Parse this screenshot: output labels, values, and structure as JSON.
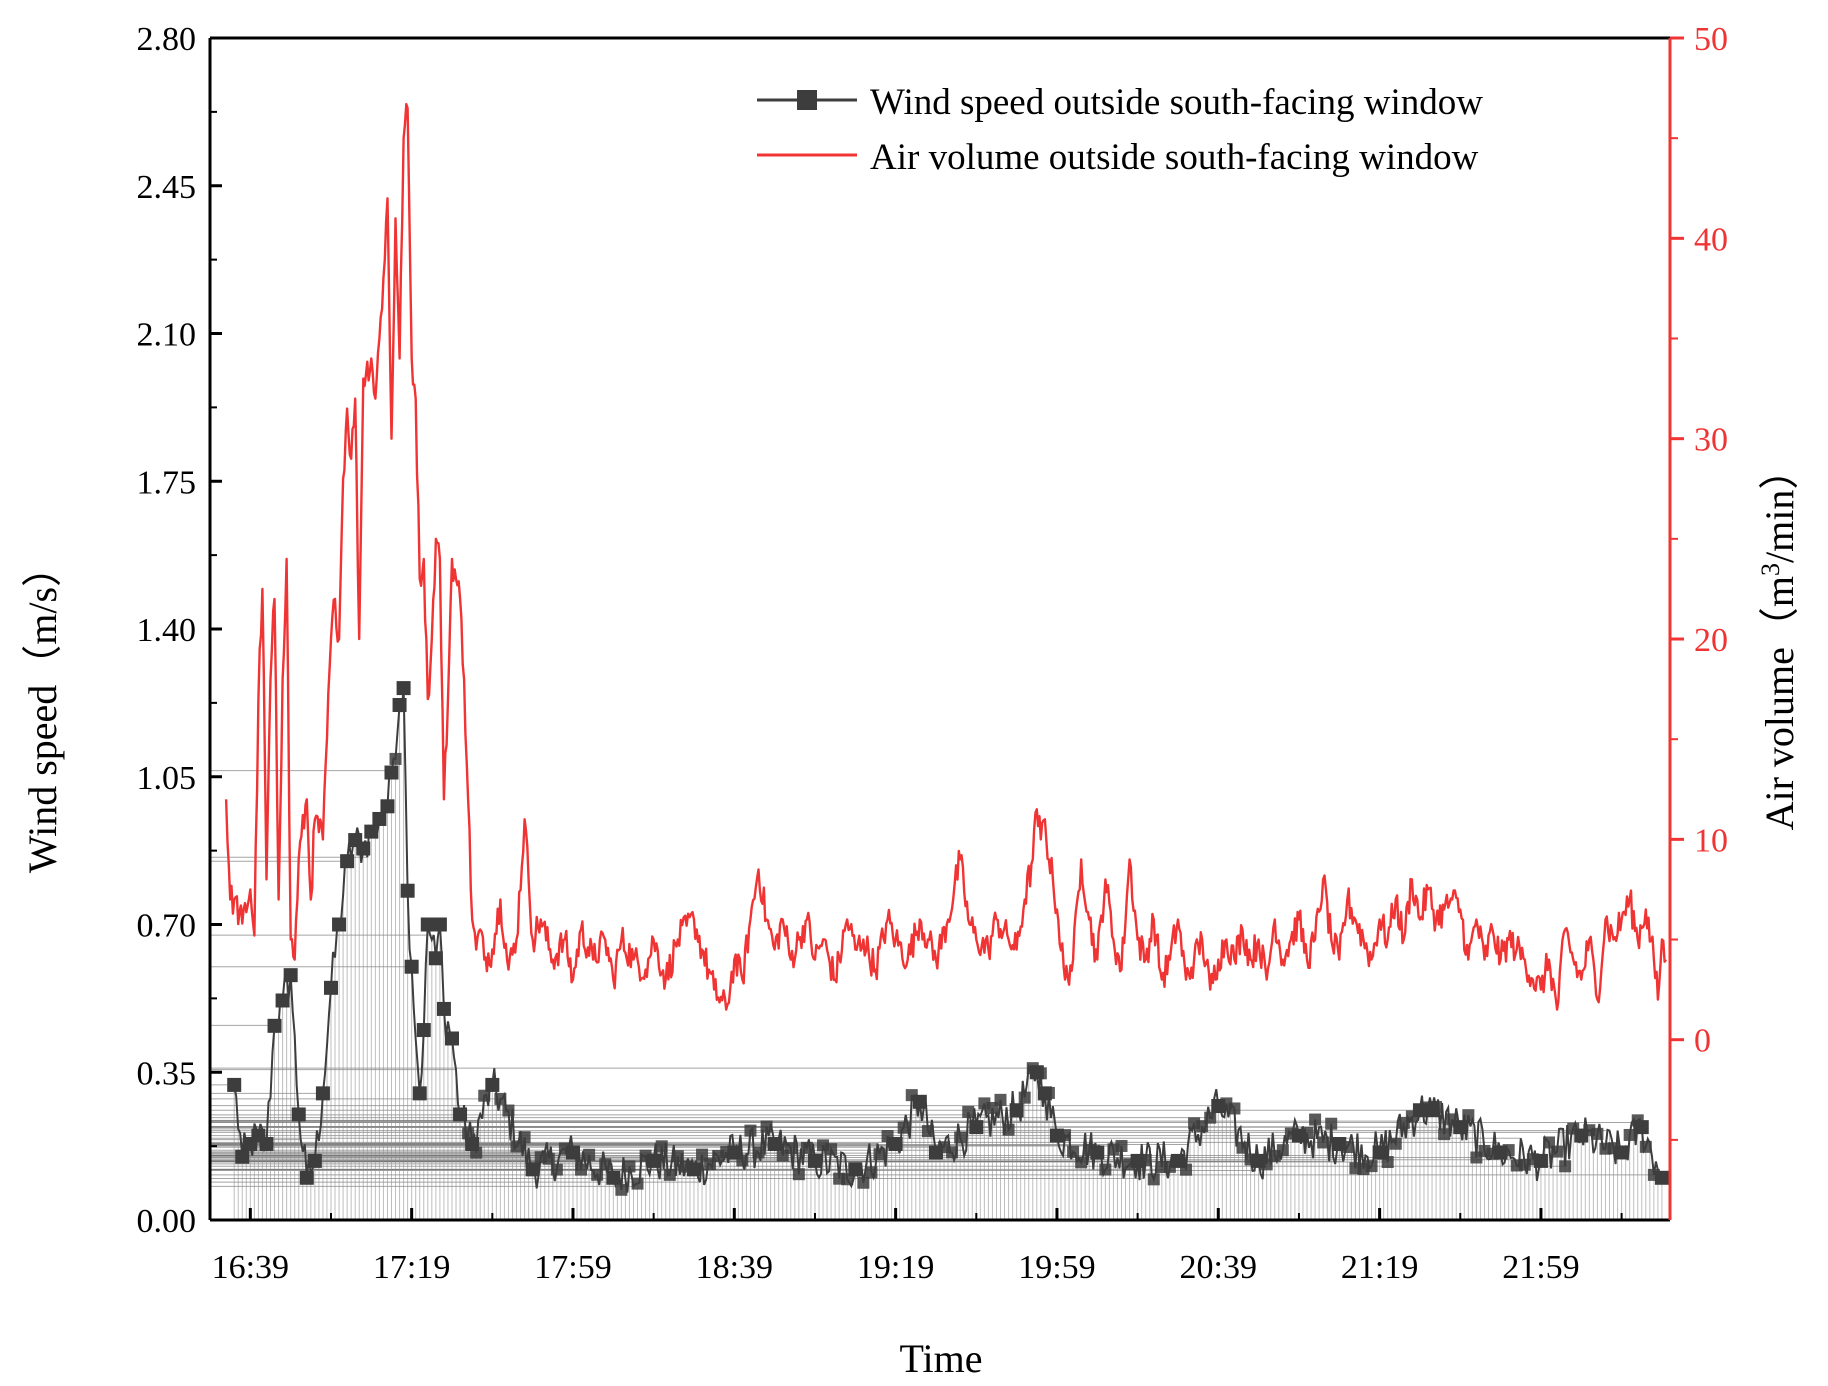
{
  "chart_data": {
    "type": "line",
    "xlabel": "Time",
    "ylabel_left_main": "Wind speed",
    "ylabel_left_unit": "（m/s）",
    "ylabel_right_main": "Air volume",
    "ylabel_right_unit_prefix": "（m",
    "ylabel_right_unit_sup": "3",
    "ylabel_right_unit_suffix": "/min）",
    "x_tick_labels": [
      "16:39",
      "17:19",
      "17:59",
      "18:39",
      "19:19",
      "19:59",
      "20:39",
      "21:19",
      "21:59"
    ],
    "x_tick_minutes": [
      0,
      40,
      80,
      120,
      160,
      200,
      240,
      280,
      320
    ],
    "x_range_minutes": [
      -10,
      352
    ],
    "y_left_ticks": [
      "0.00",
      "0.35",
      "0.70",
      "1.05",
      "1.40",
      "1.75",
      "2.10",
      "2.45",
      "2.80"
    ],
    "y_left_range": [
      0,
      2.8
    ],
    "y_right_ticks": [
      "0",
      "10",
      "20",
      "30",
      "40",
      "50"
    ],
    "y_right_range": [
      -9,
      50
    ],
    "grid": false,
    "legend_position": "top-right",
    "series": [
      {
        "name": "Wind speed outside south-facing window",
        "axis": "left",
        "marker": "square",
        "color": "#3d3d3d",
        "key_points": [
          [
            -4,
            0.32
          ],
          [
            -2,
            0.15
          ],
          [
            0,
            0.18
          ],
          [
            2,
            0.2
          ],
          [
            4,
            0.18
          ],
          [
            6,
            0.46
          ],
          [
            8,
            0.52
          ],
          [
            10,
            0.58
          ],
          [
            12,
            0.25
          ],
          [
            14,
            0.1
          ],
          [
            16,
            0.14
          ],
          [
            18,
            0.3
          ],
          [
            20,
            0.55
          ],
          [
            22,
            0.7
          ],
          [
            24,
            0.85
          ],
          [
            26,
            0.9
          ],
          [
            28,
            0.88
          ],
          [
            30,
            0.92
          ],
          [
            32,
            0.95
          ],
          [
            34,
            0.98
          ],
          [
            35,
            1.06
          ],
          [
            37,
            1.22
          ],
          [
            38,
            1.26
          ],
          [
            39,
            0.78
          ],
          [
            40,
            0.6
          ],
          [
            42,
            0.3
          ],
          [
            43,
            0.45
          ],
          [
            44,
            0.7
          ],
          [
            46,
            0.62
          ],
          [
            47,
            0.7
          ],
          [
            48,
            0.5
          ],
          [
            50,
            0.43
          ],
          [
            52,
            0.25
          ],
          [
            55,
            0.18
          ],
          [
            60,
            0.32
          ],
          [
            70,
            0.12
          ],
          [
            80,
            0.16
          ],
          [
            90,
            0.1
          ],
          [
            100,
            0.14
          ],
          [
            110,
            0.12
          ],
          [
            120,
            0.16
          ],
          [
            130,
            0.18
          ],
          [
            140,
            0.14
          ],
          [
            150,
            0.12
          ],
          [
            160,
            0.18
          ],
          [
            166,
            0.28
          ],
          [
            170,
            0.16
          ],
          [
            180,
            0.22
          ],
          [
            190,
            0.26
          ],
          [
            195,
            0.35
          ],
          [
            197,
            0.3
          ],
          [
            200,
            0.2
          ],
          [
            210,
            0.16
          ],
          [
            220,
            0.14
          ],
          [
            230,
            0.14
          ],
          [
            240,
            0.27
          ],
          [
            250,
            0.14
          ],
          [
            260,
            0.2
          ],
          [
            270,
            0.18
          ],
          [
            280,
            0.16
          ],
          [
            290,
            0.26
          ],
          [
            293,
            0.26
          ],
          [
            300,
            0.22
          ],
          [
            310,
            0.16
          ],
          [
            320,
            0.14
          ],
          [
            330,
            0.2
          ],
          [
            340,
            0.16
          ],
          [
            345,
            0.22
          ],
          [
            350,
            0.1
          ]
        ]
      },
      {
        "name": "Air volume outside south-facing window",
        "axis": "right",
        "color": "#f03434",
        "key_points": [
          [
            -6,
            12
          ],
          [
            -5,
            7
          ],
          [
            -4,
            7
          ],
          [
            -2,
            5.8
          ],
          [
            0,
            7.5
          ],
          [
            1,
            5.2
          ],
          [
            2,
            17
          ],
          [
            3,
            22.5
          ],
          [
            4,
            8
          ],
          [
            5,
            18
          ],
          [
            6,
            22
          ],
          [
            7,
            7
          ],
          [
            8,
            18
          ],
          [
            9,
            24
          ],
          [
            10,
            5
          ],
          [
            11,
            4
          ],
          [
            12,
            9
          ],
          [
            14,
            12
          ],
          [
            15,
            7
          ],
          [
            16,
            11
          ],
          [
            18,
            10
          ],
          [
            20,
            20
          ],
          [
            21,
            22
          ],
          [
            22,
            20
          ],
          [
            23,
            28
          ],
          [
            24,
            31.5
          ],
          [
            25,
            29
          ],
          [
            26,
            32
          ],
          [
            27,
            20
          ],
          [
            28,
            33
          ],
          [
            30,
            34
          ],
          [
            31,
            32
          ],
          [
            32,
            35
          ],
          [
            33,
            38
          ],
          [
            34,
            42
          ],
          [
            35,
            30
          ],
          [
            36,
            41
          ],
          [
            37,
            34
          ],
          [
            38,
            45
          ],
          [
            39,
            46.5
          ],
          [
            40,
            34
          ],
          [
            41,
            32
          ],
          [
            42,
            23
          ],
          [
            43,
            24
          ],
          [
            44,
            17
          ],
          [
            45,
            20
          ],
          [
            46,
            25
          ],
          [
            47,
            24
          ],
          [
            48,
            12
          ],
          [
            49,
            17
          ],
          [
            50,
            24
          ],
          [
            51,
            23
          ],
          [
            52,
            22
          ],
          [
            53,
            18
          ],
          [
            54,
            12
          ],
          [
            55,
            6
          ],
          [
            56,
            4.5
          ],
          [
            57,
            5.5
          ],
          [
            58,
            4
          ],
          [
            60,
            4.5
          ],
          [
            62,
            7
          ],
          [
            64,
            3.5
          ],
          [
            66,
            5
          ],
          [
            68,
            11
          ],
          [
            69,
            8
          ],
          [
            70,
            5
          ],
          [
            72,
            6
          ],
          [
            75,
            4
          ],
          [
            78,
            5
          ],
          [
            80,
            3
          ],
          [
            82,
            5.5
          ],
          [
            85,
            4
          ],
          [
            88,
            5
          ],
          [
            90,
            3
          ],
          [
            92,
            5
          ],
          [
            95,
            4
          ],
          [
            98,
            3.5
          ],
          [
            100,
            5
          ],
          [
            103,
            3
          ],
          [
            106,
            5
          ],
          [
            110,
            6
          ],
          [
            112,
            4.5
          ],
          [
            115,
            2.5
          ],
          [
            118,
            1.5
          ],
          [
            120,
            4
          ],
          [
            122,
            3
          ],
          [
            124,
            6
          ],
          [
            126,
            8.5
          ],
          [
            128,
            6
          ],
          [
            130,
            4.5
          ],
          [
            132,
            6
          ],
          [
            134,
            4
          ],
          [
            136,
            5
          ],
          [
            138,
            6
          ],
          [
            140,
            4
          ],
          [
            142,
            5
          ],
          [
            145,
            3
          ],
          [
            148,
            6
          ],
          [
            150,
            4.5
          ],
          [
            152,
            5
          ],
          [
            155,
            3.5
          ],
          [
            158,
            6
          ],
          [
            160,
            5
          ],
          [
            163,
            4
          ],
          [
            166,
            6
          ],
          [
            168,
            5
          ],
          [
            170,
            4
          ],
          [
            173,
            6
          ],
          [
            176,
            9
          ],
          [
            178,
            6
          ],
          [
            180,
            5
          ],
          [
            183,
            4.5
          ],
          [
            185,
            6
          ],
          [
            188,
            5
          ],
          [
            190,
            4.5
          ],
          [
            192,
            7
          ],
          [
            194,
            9
          ],
          [
            195,
            11.5
          ],
          [
            196,
            10
          ],
          [
            197,
            11
          ],
          [
            198,
            9
          ],
          [
            199,
            8
          ],
          [
            200,
            6.5
          ],
          [
            202,
            3
          ],
          [
            204,
            4
          ],
          [
            206,
            9
          ],
          [
            208,
            6
          ],
          [
            210,
            4
          ],
          [
            212,
            8
          ],
          [
            214,
            5
          ],
          [
            216,
            3.5
          ],
          [
            218,
            9
          ],
          [
            220,
            5
          ],
          [
            222,
            4
          ],
          [
            224,
            6
          ],
          [
            226,
            3
          ],
          [
            228,
            4
          ],
          [
            230,
            6
          ],
          [
            232,
            3
          ],
          [
            234,
            4
          ],
          [
            236,
            5
          ],
          [
            238,
            2.5
          ],
          [
            240,
            4
          ],
          [
            242,
            5
          ],
          [
            244,
            4
          ],
          [
            246,
            5.5
          ],
          [
            248,
            4
          ],
          [
            250,
            5
          ],
          [
            252,
            3
          ],
          [
            254,
            6
          ],
          [
            256,
            4
          ],
          [
            258,
            5
          ],
          [
            260,
            6
          ],
          [
            262,
            4
          ],
          [
            264,
            5
          ],
          [
            266,
            8
          ],
          [
            268,
            5
          ],
          [
            270,
            4
          ],
          [
            272,
            7
          ],
          [
            274,
            6
          ],
          [
            276,
            5
          ],
          [
            278,
            4
          ],
          [
            280,
            6
          ],
          [
            282,
            5
          ],
          [
            284,
            7
          ],
          [
            286,
            5
          ],
          [
            288,
            8
          ],
          [
            290,
            6
          ],
          [
            292,
            7.5
          ],
          [
            294,
            6
          ],
          [
            296,
            6.5
          ],
          [
            298,
            7
          ],
          [
            300,
            6.5
          ],
          [
            302,
            4
          ],
          [
            304,
            6
          ],
          [
            306,
            4
          ],
          [
            308,
            5.5
          ],
          [
            310,
            4
          ],
          [
            312,
            5
          ],
          [
            314,
            4.5
          ],
          [
            316,
            4
          ],
          [
            318,
            3
          ],
          [
            320,
            2.5
          ],
          [
            322,
            4
          ],
          [
            324,
            1.5
          ],
          [
            326,
            5.5
          ],
          [
            328,
            4
          ],
          [
            330,
            3
          ],
          [
            332,
            5
          ],
          [
            334,
            2
          ],
          [
            336,
            6
          ],
          [
            338,
            5
          ],
          [
            340,
            6
          ],
          [
            342,
            7
          ],
          [
            344,
            5
          ],
          [
            346,
            6.5
          ],
          [
            348,
            4
          ],
          [
            349,
            2
          ],
          [
            350,
            5
          ],
          [
            351,
            4
          ]
        ]
      }
    ]
  }
}
